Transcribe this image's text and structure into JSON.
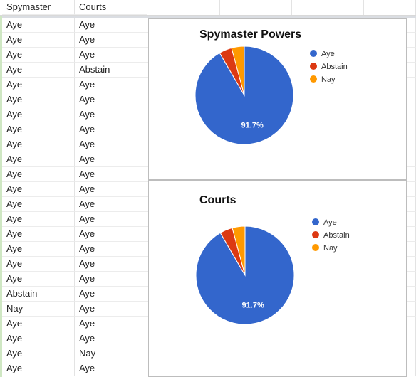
{
  "sheet": {
    "headers": [
      "Spymaster",
      "Courts"
    ],
    "rows": [
      [
        "Aye",
        "Aye"
      ],
      [
        "Aye",
        "Aye"
      ],
      [
        "Aye",
        "Aye"
      ],
      [
        "Aye",
        "Abstain"
      ],
      [
        "Aye",
        "Aye"
      ],
      [
        "Aye",
        "Aye"
      ],
      [
        "Aye",
        "Aye"
      ],
      [
        "Aye",
        "Aye"
      ],
      [
        "Aye",
        "Aye"
      ],
      [
        "Aye",
        "Aye"
      ],
      [
        "Aye",
        "Aye"
      ],
      [
        "Aye",
        "Aye"
      ],
      [
        "Aye",
        "Aye"
      ],
      [
        "Aye",
        "Aye"
      ],
      [
        "Aye",
        "Aye"
      ],
      [
        "Aye",
        "Aye"
      ],
      [
        "Aye",
        "Aye"
      ],
      [
        "Aye",
        "Aye"
      ],
      [
        "Abstain",
        "Aye"
      ],
      [
        "Nay",
        "Aye"
      ],
      [
        "Aye",
        "Aye"
      ],
      [
        "Aye",
        "Aye"
      ],
      [
        "Aye",
        "Nay"
      ],
      [
        "Aye",
        "Aye"
      ]
    ]
  },
  "colors": {
    "Aye": "#3366cc",
    "Abstain": "#dc3912",
    "Nay": "#ff9900"
  },
  "chart_data": [
    {
      "type": "pie",
      "title": "Spymaster Powers",
      "categories": [
        "Aye",
        "Abstain",
        "Nay"
      ],
      "values": [
        91.7,
        4.2,
        4.2
      ],
      "slice_label": "91.7%",
      "legend": "right"
    },
    {
      "type": "pie",
      "title": "Courts",
      "categories": [
        "Aye",
        "Abstain",
        "Nay"
      ],
      "values": [
        91.7,
        4.2,
        4.2
      ],
      "slice_label": "91.7%",
      "legend": "right"
    }
  ]
}
